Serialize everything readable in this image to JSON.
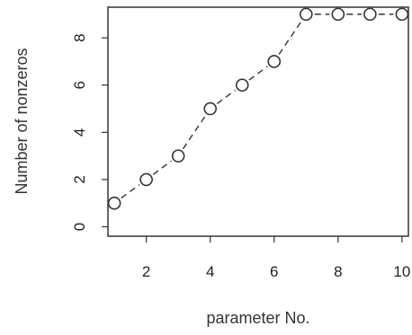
{
  "chart_data": {
    "type": "line",
    "title": "",
    "xlabel": "parameter No.",
    "ylabel": "Number of nonzeros",
    "x": [
      1,
      2,
      3,
      4,
      5,
      6,
      7,
      8,
      9,
      10
    ],
    "series": [
      {
        "values": [
          1,
          2,
          3,
          5,
          6,
          7,
          9,
          9,
          9,
          9
        ]
      }
    ],
    "xticks": [
      "2",
      "4",
      "6",
      "8",
      "10"
    ],
    "yticks": [
      "0",
      "2",
      "4",
      "6",
      "8"
    ],
    "xlim": [
      0.8,
      10.2
    ],
    "ylim": [
      -0.4,
      9.3
    ],
    "grid": false,
    "line_style": "dashed",
    "marker": "open-circle",
    "colors": {
      "line": "#333333",
      "axis": "#333333",
      "text": "#222222"
    }
  }
}
